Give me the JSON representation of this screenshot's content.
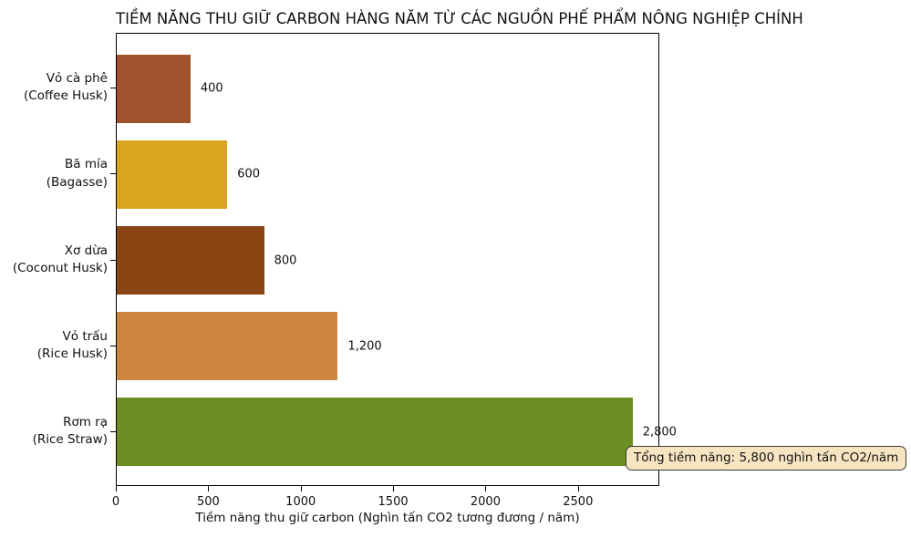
{
  "chart_data": {
    "type": "bar",
    "orientation": "horizontal",
    "title": "TIỀM NĂNG THU GIỮ CARBON HÀNG NĂM TỪ CÁC NGUỒN PHẾ PHẨM NÔNG NGHIỆP CHÍNH",
    "xlabel": "Tiềm năng thu giữ carbon (Nghìn tấn CO2 tương đương / năm)",
    "ylabel": "",
    "xlim": [
      0,
      2940
    ],
    "xticks": [
      "0",
      "500",
      "1000",
      "1500",
      "2000",
      "2500"
    ],
    "xtick_values": [
      0,
      500,
      1000,
      1500,
      2000,
      2500
    ],
    "grid": false,
    "legend": false,
    "categories": [
      {
        "line1": "Vỏ cà phê",
        "line2": "(Coffee Husk)"
      },
      {
        "line1": "Bã mía",
        "line2": "(Bagasse)"
      },
      {
        "line1": "Xơ dừa",
        "line2": "(Coconut Husk)"
      },
      {
        "line1": "Vỏ trấu",
        "line2": "(Rice Husk)"
      },
      {
        "line1": "Rơm rạ",
        "line2": "(Rice Straw)"
      }
    ],
    "values": [
      400,
      600,
      800,
      1200,
      2800
    ],
    "value_labels": [
      "400",
      "600",
      "800",
      "1,200",
      "2,800"
    ],
    "bar_colors": [
      "#A0522D",
      "#DAA520",
      "#8B4513",
      "#CD853F",
      "#6B8E23"
    ],
    "annotation": {
      "text": "Tổng tiềm năng: 5,800 nghìn tấn CO2/năm",
      "bg_color": "#F7E5C2",
      "border_color": "#3a3a3a"
    }
  }
}
